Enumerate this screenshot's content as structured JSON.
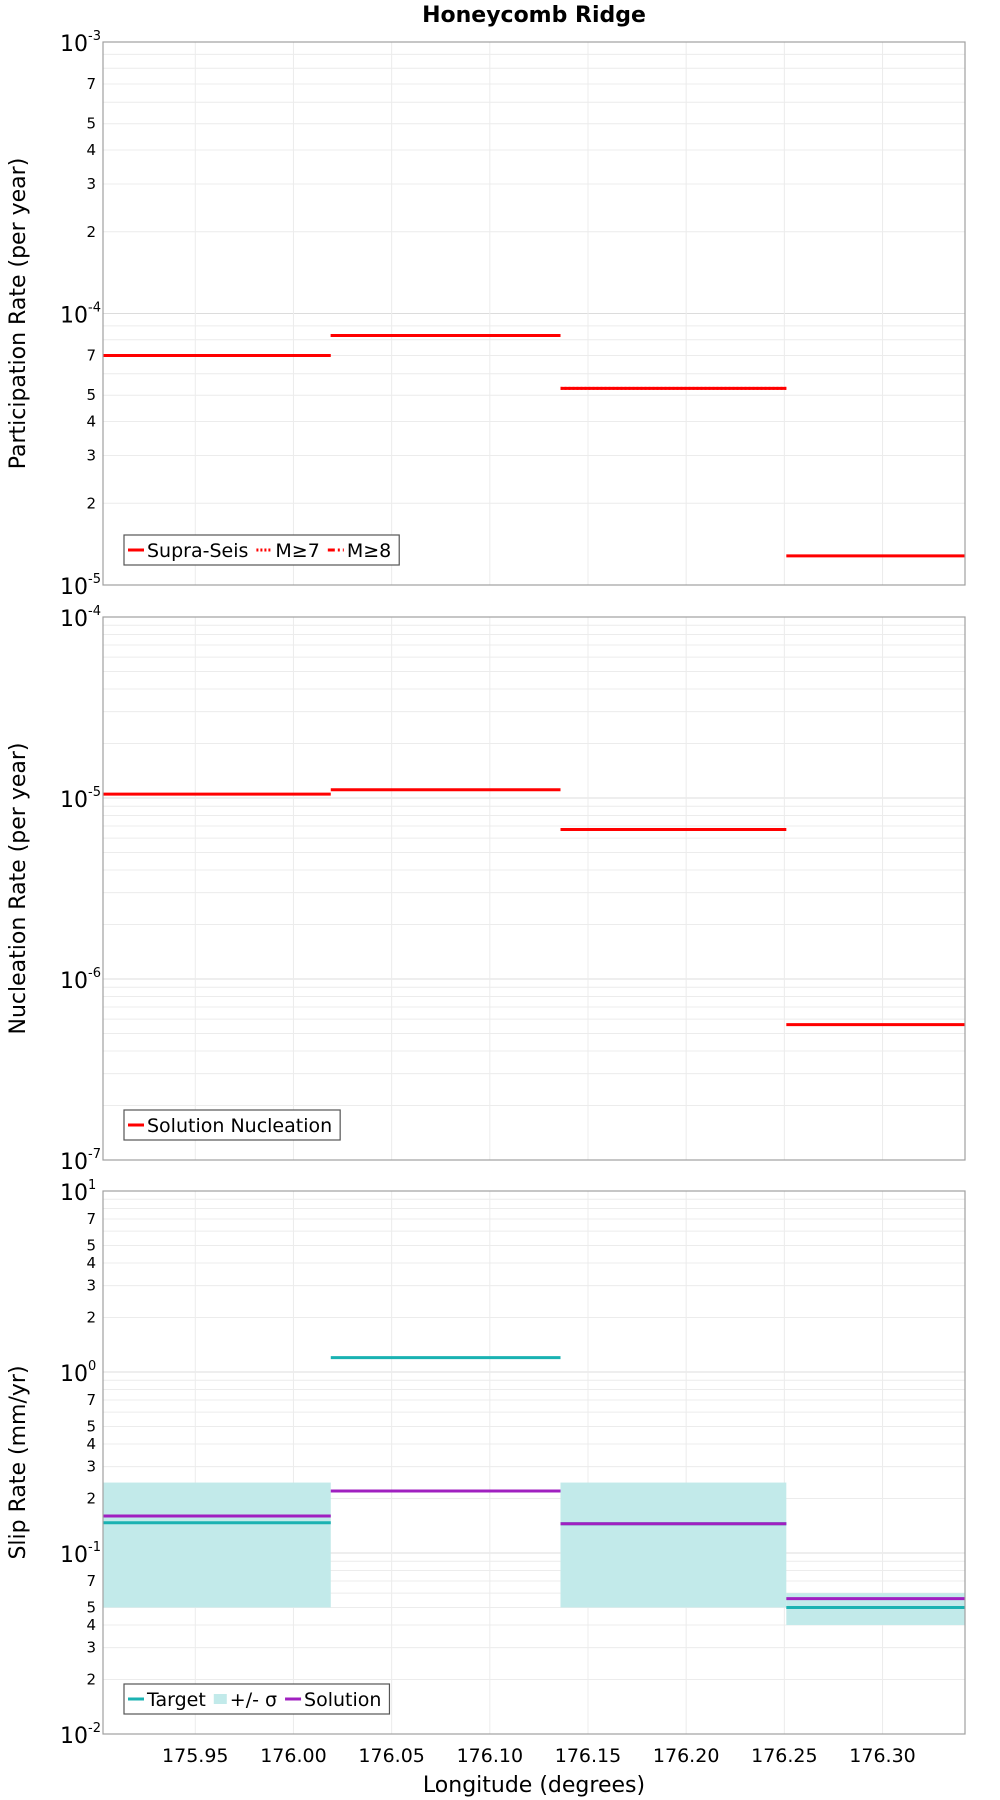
{
  "chart_data": [
    {
      "type": "line",
      "title": "Honeycomb Ridge",
      "ylabel": "Participation Rate (per year)",
      "yscale": "log",
      "ylim": [
        1e-05,
        0.001
      ],
      "xlim": [
        175.903,
        176.342
      ],
      "grid": true,
      "legend_position": "bottom-left",
      "series": [
        {
          "name": "Supra-Seis",
          "color": "#ff0000",
          "style": "solid",
          "segments": [
            {
              "x": [
                175.903,
                176.019
              ],
              "y": [
                7e-05
              ]
            },
            {
              "x": [
                176.019,
                176.136
              ],
              "y": [
                8.3e-05
              ]
            },
            {
              "x": [
                176.136,
                176.251
              ],
              "y": [
                5.3e-05
              ]
            },
            {
              "x": [
                176.251,
                176.342
              ],
              "y": [
                1.28e-05
              ]
            }
          ]
        },
        {
          "name": "M≥7",
          "color": "#ff0000",
          "style": "dotted",
          "segments": [
            {
              "x": [
                175.903,
                176.019
              ],
              "y": [
                7e-05
              ]
            },
            {
              "x": [
                176.019,
                176.136
              ],
              "y": [
                8.3e-05
              ]
            },
            {
              "x": [
                176.136,
                176.251
              ],
              "y": [
                5.3e-05
              ]
            }
          ]
        },
        {
          "name": "M≥8",
          "color": "#ff0000",
          "style": "dashdot",
          "segments": []
        }
      ]
    },
    {
      "type": "line",
      "title": "",
      "ylabel": "Nucleation Rate (per year)",
      "yscale": "log",
      "ylim": [
        1e-07,
        0.0001
      ],
      "xlim": [
        175.903,
        176.342
      ],
      "grid": true,
      "legend_position": "bottom-left",
      "series": [
        {
          "name": "Solution Nucleation",
          "color": "#ff0000",
          "style": "solid",
          "segments": [
            {
              "x": [
                175.903,
                176.019
              ],
              "y": [
                1.05e-05
              ]
            },
            {
              "x": [
                176.019,
                176.136
              ],
              "y": [
                1.11e-05
              ]
            },
            {
              "x": [
                176.136,
                176.251
              ],
              "y": [
                6.7e-06
              ]
            },
            {
              "x": [
                176.251,
                176.342
              ],
              "y": [
                5.6e-07
              ]
            }
          ]
        }
      ]
    },
    {
      "type": "line",
      "title": "",
      "ylabel": "Slip Rate (mm/yr)",
      "xlabel": "Longitude (degrees)",
      "yscale": "log",
      "ylim": [
        0.01,
        10
      ],
      "xlim": [
        175.903,
        176.342
      ],
      "grid": true,
      "legend_position": "bottom-left",
      "series": [
        {
          "name": "Target",
          "color": "#1ab2b2",
          "style": "solid",
          "segments": [
            {
              "x": [
                175.903,
                176.019
              ],
              "y": [
                0.147
              ]
            },
            {
              "x": [
                176.019,
                176.136
              ],
              "y": [
                1.2
              ]
            },
            {
              "x": [
                176.136,
                176.251
              ],
              "y": [
                0.145
              ]
            },
            {
              "x": [
                176.251,
                176.342
              ],
              "y": [
                0.05
              ]
            }
          ]
        },
        {
          "name": "+/- σ",
          "color": "#c2eaea",
          "style": "band",
          "segments": [
            {
              "x": [
                175.903,
                176.019
              ],
              "y": [
                0.05,
                0.245
              ]
            },
            {
              "x": [
                176.136,
                176.251
              ],
              "y": [
                0.05,
                0.245
              ]
            },
            {
              "x": [
                176.251,
                176.342
              ],
              "y": [
                0.04,
                0.06
              ]
            }
          ]
        },
        {
          "name": "Solution",
          "color": "#a020c0",
          "style": "solid",
          "segments": [
            {
              "x": [
                175.903,
                176.019
              ],
              "y": [
                0.16
              ]
            },
            {
              "x": [
                176.019,
                176.136
              ],
              "y": [
                0.22
              ]
            },
            {
              "x": [
                176.136,
                176.251
              ],
              "y": [
                0.145
              ]
            },
            {
              "x": [
                176.251,
                176.342
              ],
              "y": [
                0.056
              ]
            }
          ]
        }
      ],
      "xticks": [
        "175.95",
        "176.00",
        "176.05",
        "176.10",
        "176.15",
        "176.20",
        "176.25",
        "176.30"
      ],
      "xtick_values": [
        175.95,
        176.0,
        176.05,
        176.1,
        176.15,
        176.2,
        176.25,
        176.3
      ]
    }
  ]
}
